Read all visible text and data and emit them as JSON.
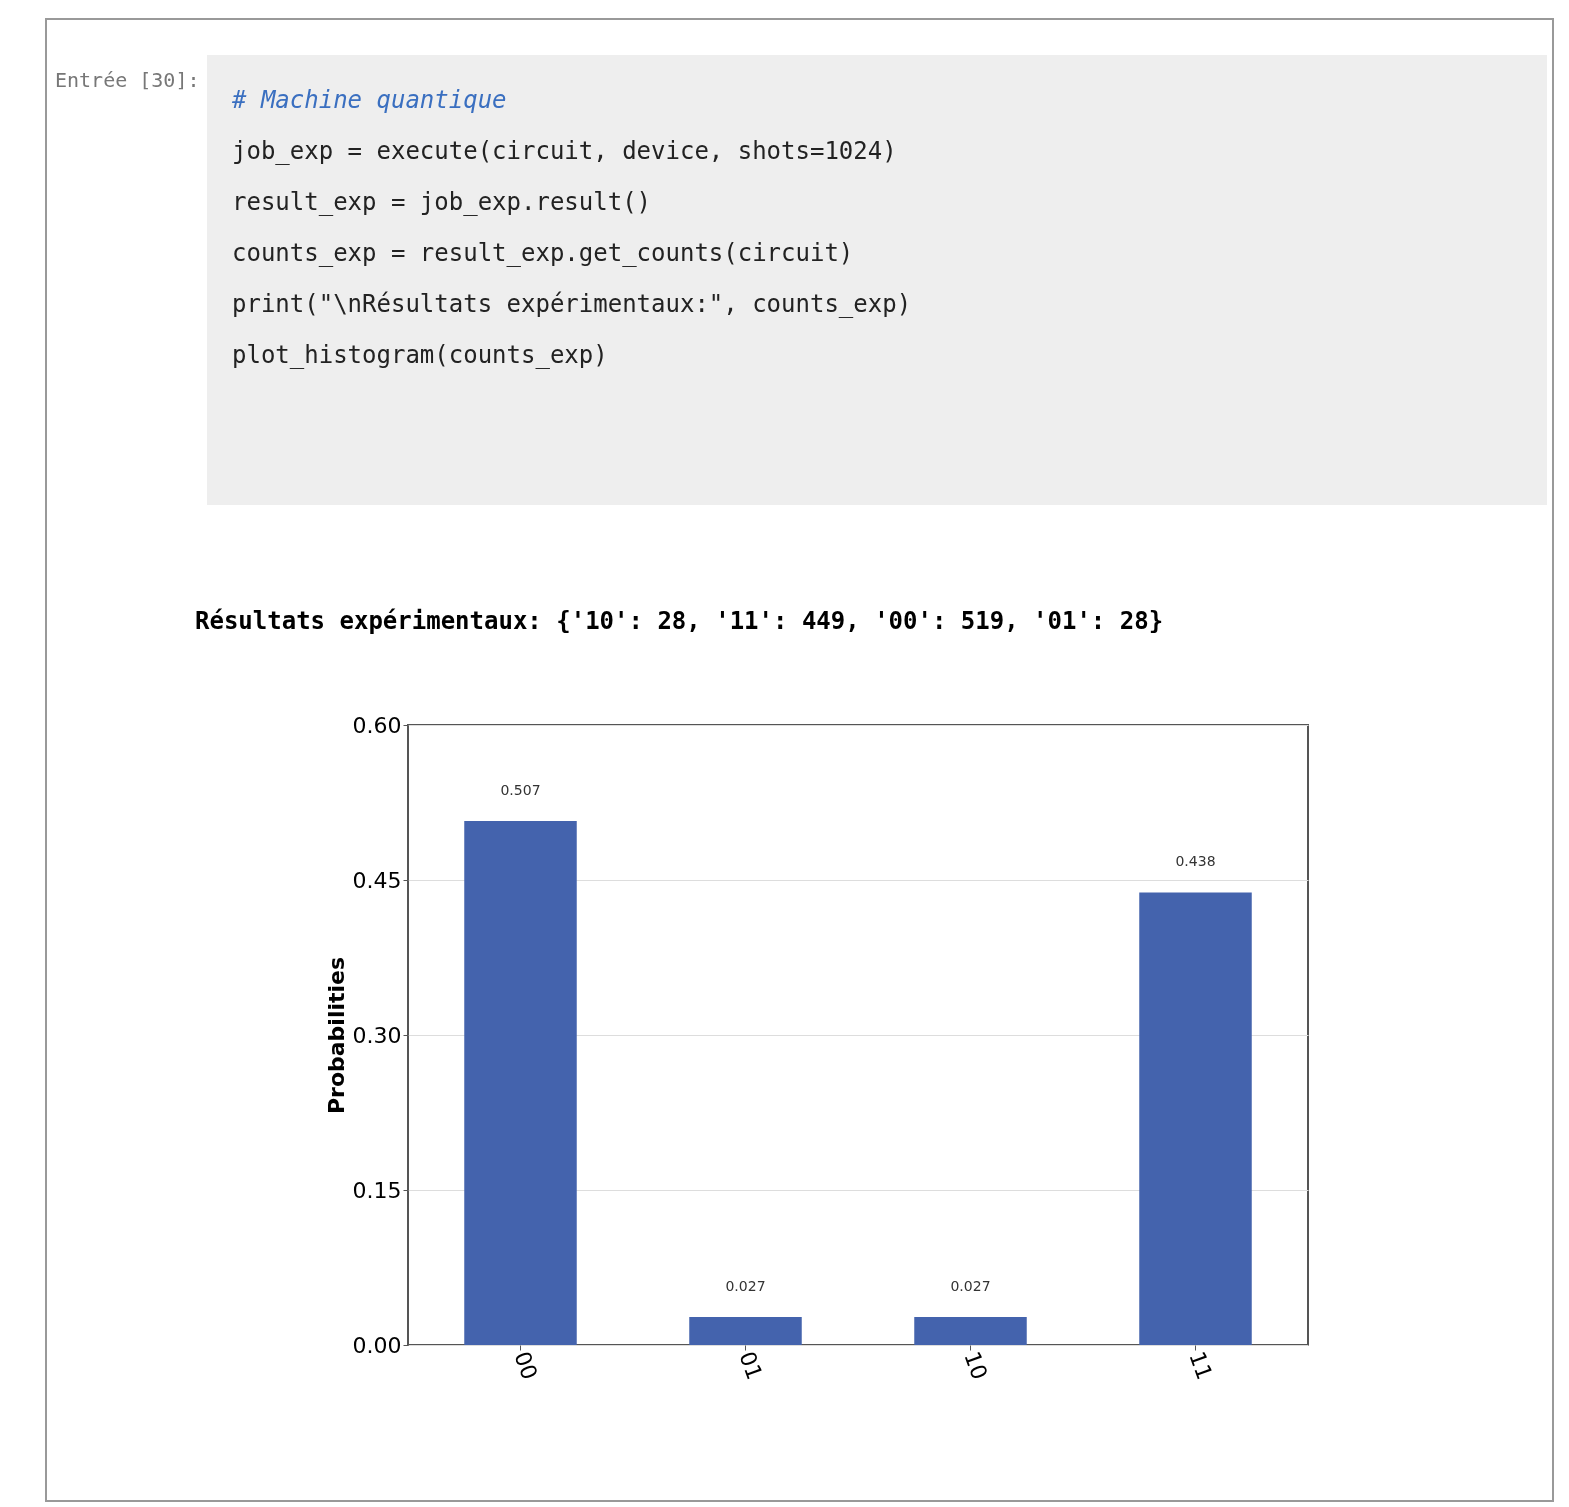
{
  "chart_data": {
    "type": "bar",
    "title": "Résultats expérimentaux: {'10': 28, '11': 449, '00': 519, '01': 28}",
    "ylabel": "Probabilities",
    "categories": [
      "00",
      "01",
      "10",
      "11"
    ],
    "values": [
      0.507,
      0.027,
      0.027,
      0.438
    ],
    "color": "#4463ad",
    "ylim": [
      0,
      0.6
    ],
    "yticks": [
      {
        "value": 0,
        "label": "0.00"
      },
      {
        "value": 0.15,
        "label": "0.15"
      },
      {
        "value": 0.3,
        "label": "0.30"
      },
      {
        "value": 0.45,
        "label": "0.45"
      },
      {
        "value": 0.6,
        "label": "0.60"
      }
    ],
    "grid": "y",
    "data_labels": true,
    "annotations": [
      "Entrée [30]:",
      "# Machine quantique",
      "job_exp = execute(circuit, device, shots=1024)",
      "result_exp = job_exp.result()",
      "counts_exp = result_exp.get_counts(circuit)",
      "print(\"\\nRésultats expérimentaux:\", counts_exp)",
      "plot_histogram(counts_exp)"
    ]
  }
}
